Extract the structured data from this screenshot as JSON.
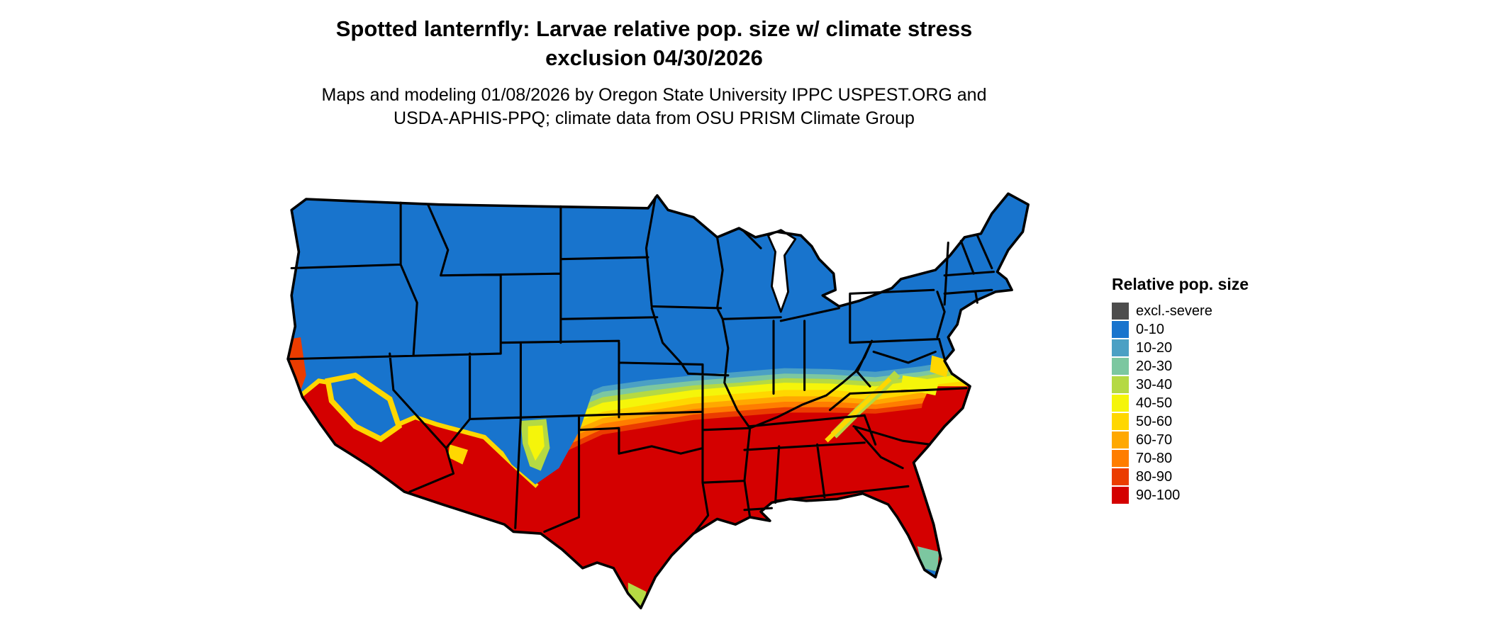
{
  "header": {
    "title_line1": "Spotted lanternfly: Larvae relative pop. size w/ climate stress",
    "title_line2": "exclusion 04/30/2026",
    "subtitle_line1": "Maps and modeling 01/08/2026 by Oregon State University IPPC USPEST.ORG and",
    "subtitle_line2": "USDA-APHIS-PPQ; climate data from OSU PRISM Climate Group"
  },
  "legend": {
    "title": "Relative pop. size",
    "items": [
      {
        "label": "excl.-severe",
        "color": "#4d4d4d"
      },
      {
        "label": "0-10",
        "color": "#1874cd"
      },
      {
        "label": "10-20",
        "color": "#4ba0c4"
      },
      {
        "label": "20-30",
        "color": "#7cc7a0"
      },
      {
        "label": "30-40",
        "color": "#b5d943"
      },
      {
        "label": "40-50",
        "color": "#f5f50a"
      },
      {
        "label": "50-60",
        "color": "#ffd700"
      },
      {
        "label": "60-70",
        "color": "#ffa800"
      },
      {
        "label": "70-80",
        "color": "#ff7d00"
      },
      {
        "label": "80-90",
        "color": "#eb3c00"
      },
      {
        "label": "90-100",
        "color": "#d40000"
      }
    ]
  },
  "map": {
    "region": "Continental United States"
  }
}
